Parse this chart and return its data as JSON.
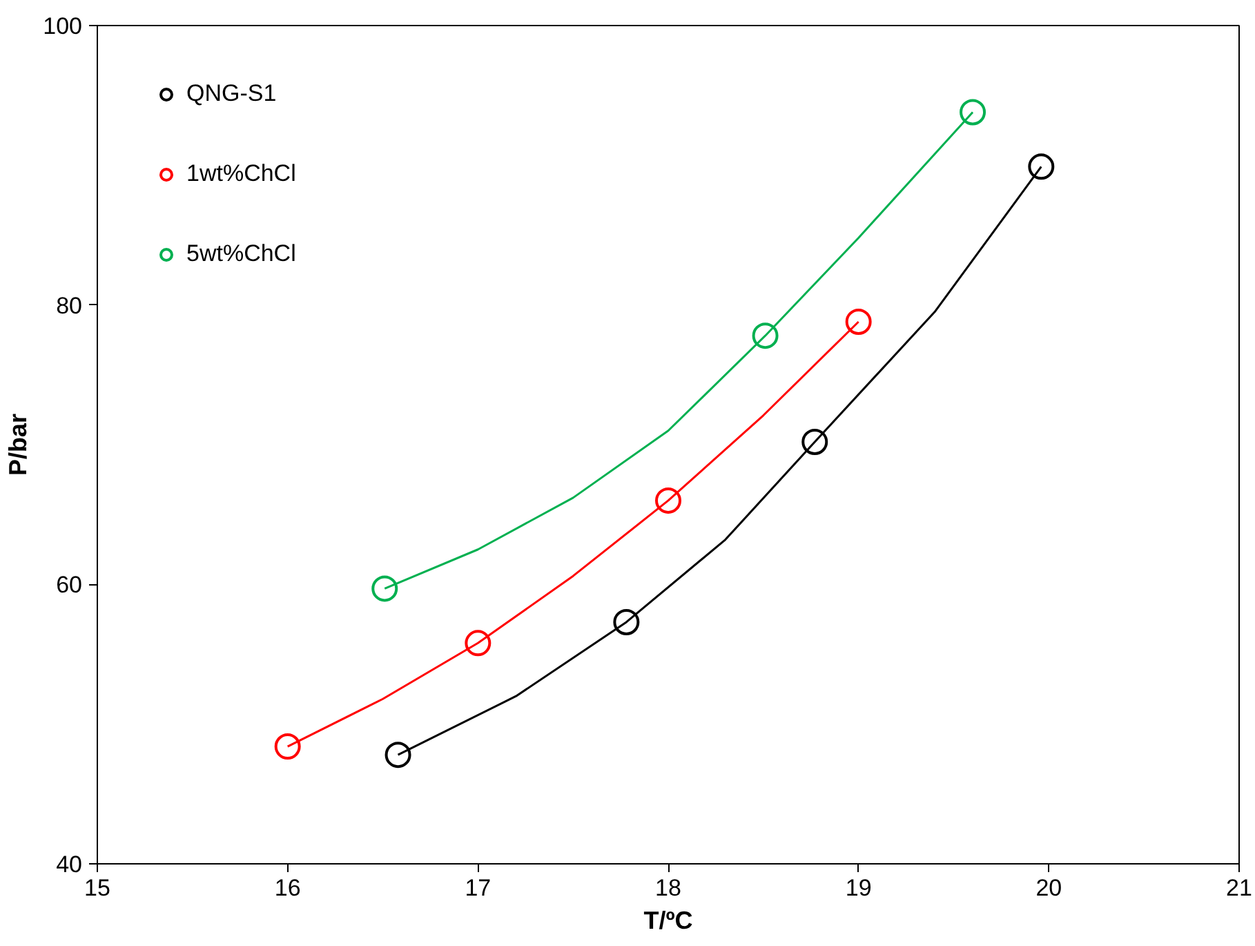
{
  "chart_data": {
    "type": "scatter",
    "xlabel": "T/ºC",
    "ylabel": "P/bar",
    "xlim": [
      15,
      21
    ],
    "ylim": [
      40,
      100
    ],
    "xticks": [
      15,
      16,
      17,
      18,
      19,
      20,
      21
    ],
    "yticks": [
      40,
      60,
      80,
      100
    ],
    "grid": false,
    "legend": "top left",
    "series": [
      {
        "name": "QNG-S1",
        "marker": "circle",
        "color": "#000000",
        "x": [
          16.58,
          17.78,
          18.77,
          19.96
        ],
        "values": [
          47.8,
          57.3,
          70.2,
          89.9
        ]
      },
      {
        "name": "1wt%ChCl",
        "marker": "circle",
        "color": "#ff0000",
        "x": [
          16.0,
          17.0,
          18.0,
          19.0
        ],
        "values": [
          48.4,
          55.8,
          66.0,
          78.8
        ]
      },
      {
        "name": "5wt%ChCl",
        "marker": "circle",
        "color": "#00b050",
        "x": [
          16.51,
          18.51,
          19.6
        ],
        "values": [
          59.7,
          77.8,
          93.8
        ]
      },
      {
        "type": "line",
        "marker": "none",
        "color": "#000000",
        "x": [
          16.58,
          17.2,
          17.78,
          18.3,
          18.77,
          19.4,
          19.96
        ],
        "values": [
          47.8,
          52.0,
          57.3,
          63.2,
          70.2,
          79.5,
          89.9
        ]
      },
      {
        "type": "line",
        "marker": "none",
        "color": "#ff0000",
        "x": [
          16.0,
          16.5,
          17.0,
          17.5,
          18.0,
          18.5,
          19.0
        ],
        "values": [
          48.4,
          51.8,
          55.8,
          60.6,
          66.0,
          72.1,
          78.8
        ]
      },
      {
        "type": "line",
        "marker": "none",
        "color": "#00b050",
        "x": [
          16.51,
          17.0,
          17.5,
          18.0,
          18.51,
          19.0,
          19.6
        ],
        "values": [
          59.7,
          62.5,
          66.2,
          71.0,
          77.8,
          84.8,
          93.8
        ]
      }
    ]
  }
}
